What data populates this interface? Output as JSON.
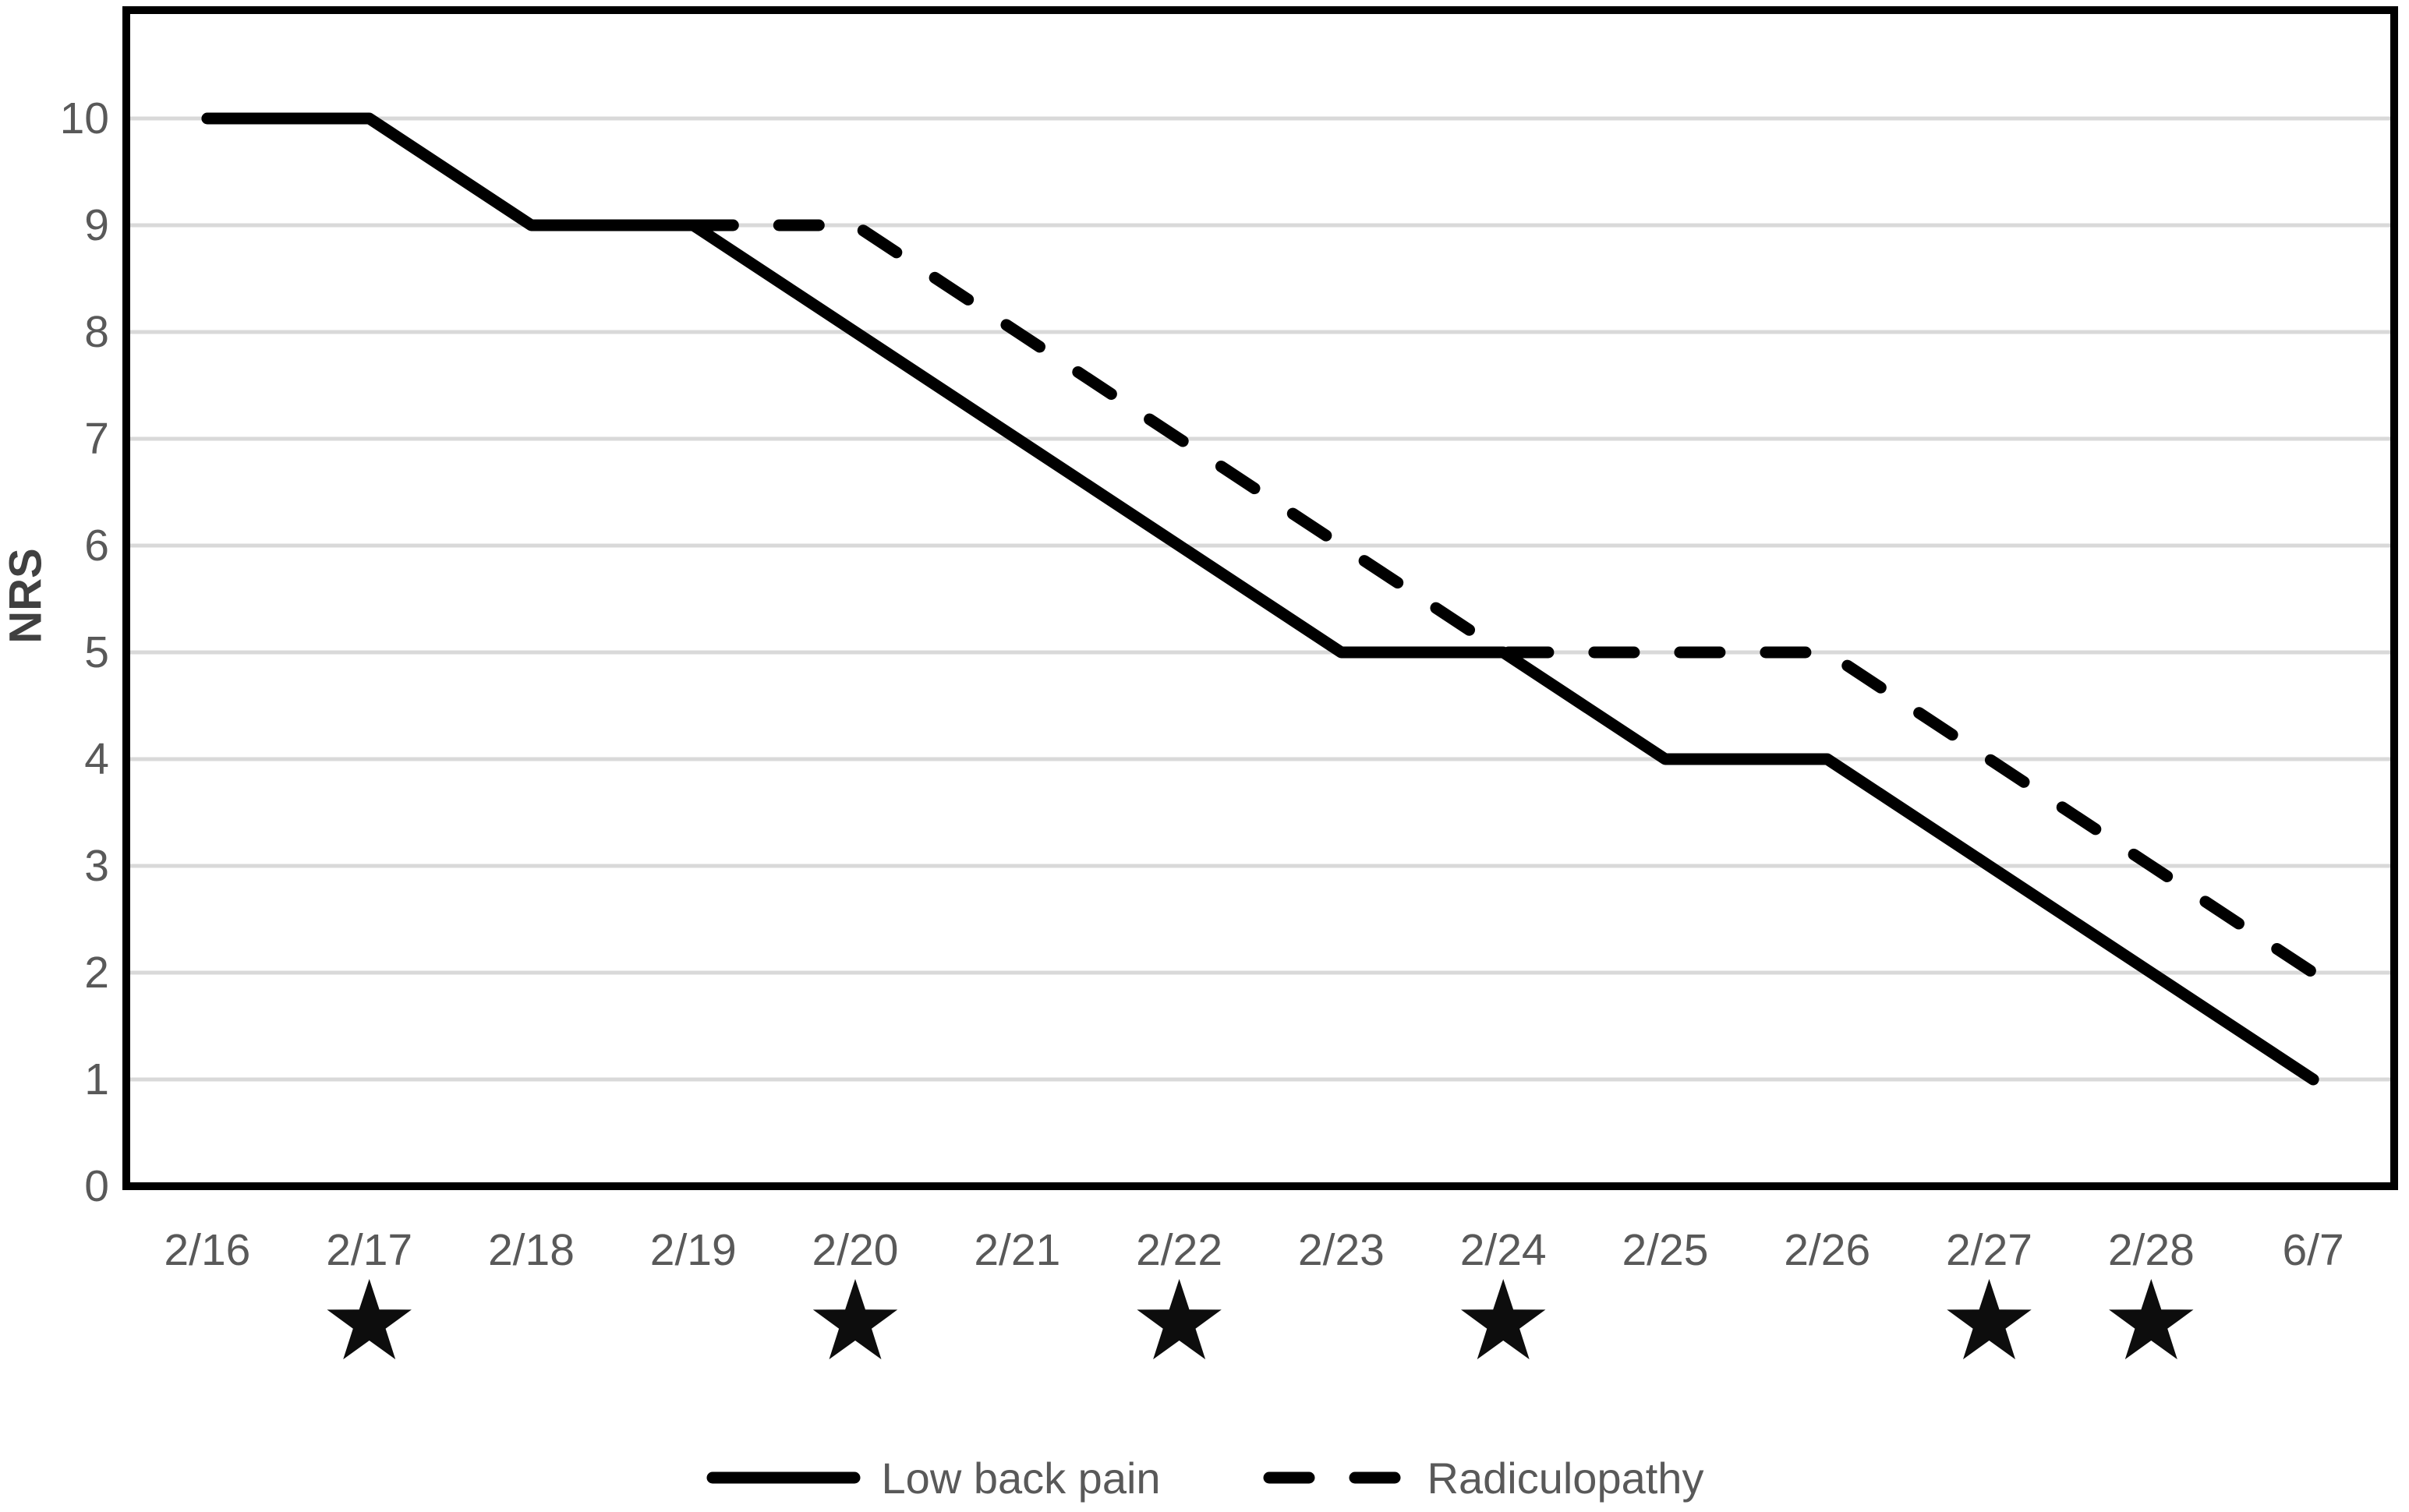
{
  "chart_data": {
    "type": "line",
    "title": "",
    "xlabel": "",
    "ylabel": "NRS",
    "ylim": [
      0,
      10
    ],
    "grid": true,
    "legend_position": "bottom",
    "y_ticks": [
      0,
      1,
      2,
      3,
      4,
      5,
      6,
      7,
      8,
      9,
      10
    ],
    "categories": [
      "2/16",
      "2/17",
      "2/18",
      "2/19",
      "2/20",
      "2/21",
      "2/22",
      "2/23",
      "2/24",
      "2/25",
      "2/26",
      "2/27",
      "2/28",
      "6/7"
    ],
    "series": [
      {
        "name": "Low back pain",
        "line_style": "solid",
        "values": [
          10,
          10,
          9,
          9,
          8,
          7,
          6,
          5,
          5,
          4,
          4,
          3,
          2,
          1
        ]
      },
      {
        "name": "Radiculopathy",
        "line_style": "dashed",
        "values": [
          null,
          null,
          null,
          9,
          9,
          8,
          7,
          6,
          5,
          5,
          5,
          4,
          3,
          2
        ]
      }
    ],
    "star_marked_categories": [
      "2/17",
      "2/20",
      "2/22",
      "2/24",
      "2/27",
      "2/28"
    ],
    "star_icon": "★",
    "colors": {
      "series_line": "#000000",
      "gridline": "#d9d9d9",
      "plot_border": "#000000",
      "tick_label_text": "#595959",
      "axis_title_text": "#404040"
    }
  }
}
